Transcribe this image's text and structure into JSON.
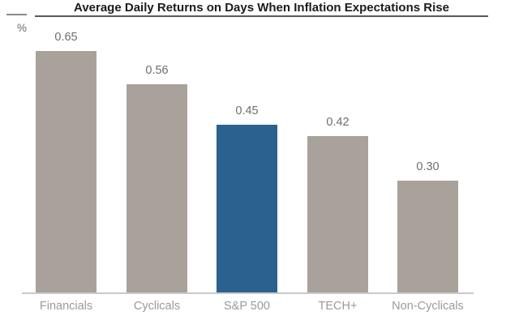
{
  "chart": {
    "title": "Average Daily Returns on Days When Inflation Expectations Rise",
    "unit_label": "%"
  },
  "chart_data": {
    "type": "bar",
    "title": "Average Daily Returns on Days When Inflation Expectations Rise",
    "xlabel": "",
    "ylabel": "%",
    "categories": [
      "Financials",
      "Cyclicals",
      "S&P 500",
      "TECH+",
      "Non-Cyclicals"
    ],
    "values": [
      0.65,
      0.56,
      0.45,
      0.42,
      0.3
    ],
    "value_labels": [
      "0.65",
      "0.56",
      "0.45",
      "0.42",
      "0.30"
    ],
    "bar_colors": [
      "#A9A29B",
      "#A9A29B",
      "#2A618F",
      "#A9A29B",
      "#A9A29B"
    ],
    "highlight_category": "S&P 500",
    "ylim": [
      0,
      0.7
    ],
    "grid": false,
    "legend": "none",
    "value_labels_position": "above-bars",
    "axis_ticks": "none"
  },
  "colors": {
    "bar_default": "#A9A29B",
    "bar_highlight": "#2A618F",
    "title_text": "#1b1b1b",
    "title_rule": "#585858",
    "value_label": "#6d6d6d",
    "category_label": "#9a9a9a",
    "axis_line": "#c9c9c9",
    "background": "#ffffff"
  }
}
